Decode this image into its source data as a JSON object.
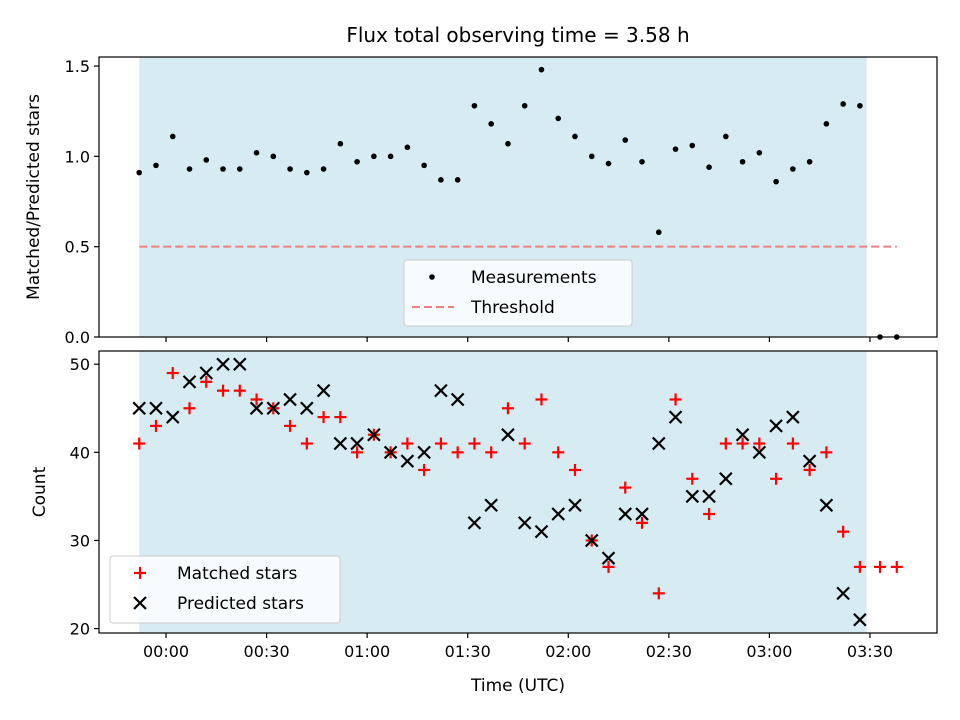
{
  "chart_data": [
    {
      "type": "scatter",
      "title": "Flux total observing time = 3.58 h",
      "xlabel": "",
      "ylabel": "Matched/Predicted stars",
      "ylim": [
        0,
        1.55
      ],
      "yticks": [
        0.0,
        0.5,
        1.0,
        1.5
      ],
      "ytick_labels": [
        "0.0",
        "0.5",
        "1.0",
        "1.5"
      ],
      "xlim_minutes": [
        -20,
        230
      ],
      "shaded_region_minutes": [
        -8,
        209
      ],
      "shade_color": "#add8e6",
      "legend_position": "lower-center",
      "threshold": {
        "name": "Threshold",
        "value": 0.5,
        "x_range_minutes": [
          -8,
          218
        ],
        "color": "#f08080"
      },
      "series": [
        {
          "name": "Measurements",
          "color": "#000000",
          "marker": "dot",
          "x_minutes": [
            -8,
            -3,
            2,
            7,
            12,
            17,
            22,
            27,
            32,
            37,
            42,
            47,
            52,
            57,
            62,
            67,
            72,
            77,
            82,
            87,
            92,
            97,
            102,
            107,
            112,
            117,
            122,
            127,
            132,
            137,
            142,
            147,
            152,
            157,
            162,
            167,
            172,
            177,
            182,
            187,
            192,
            197,
            202,
            207,
            213,
            218
          ],
          "y": [
            0.91,
            0.95,
            1.11,
            0.93,
            0.98,
            0.93,
            0.93,
            1.02,
            1.0,
            0.93,
            0.91,
            0.93,
            1.07,
            0.97,
            1.0,
            1.0,
            1.05,
            0.95,
            0.87,
            0.87,
            1.28,
            1.18,
            1.07,
            1.28,
            1.48,
            1.21,
            1.11,
            1.0,
            0.96,
            1.09,
            0.97,
            0.58,
            1.04,
            1.06,
            0.94,
            1.11,
            0.97,
            1.02,
            0.86,
            0.93,
            0.97,
            1.18,
            1.29,
            1.28,
            0.0,
            0.0
          ]
        }
      ]
    },
    {
      "type": "scatter",
      "title": "",
      "xlabel": "Time (UTC)",
      "ylabel": "Count",
      "ylim": [
        19.5,
        51.5
      ],
      "yticks": [
        20,
        30,
        40,
        50
      ],
      "ytick_labels": [
        "20",
        "30",
        "40",
        "50"
      ],
      "xlim_minutes": [
        -20,
        230
      ],
      "xticks_minutes": [
        0,
        30,
        60,
        90,
        120,
        150,
        180,
        210
      ],
      "xtick_labels": [
        "00:00",
        "00:30",
        "01:00",
        "01:30",
        "02:00",
        "02:30",
        "03:00",
        "03:30"
      ],
      "shaded_region_minutes": [
        -8,
        209
      ],
      "shade_color": "#add8e6",
      "legend_position": "lower-left",
      "series": [
        {
          "name": "Matched stars",
          "color": "#ff0000",
          "marker": "plus",
          "x_minutes": [
            -8,
            -3,
            2,
            7,
            12,
            17,
            22,
            27,
            32,
            37,
            42,
            47,
            52,
            57,
            62,
            67,
            72,
            77,
            82,
            87,
            92,
            97,
            102,
            107,
            112,
            117,
            122,
            127,
            132,
            137,
            142,
            147,
            152,
            157,
            162,
            167,
            172,
            177,
            182,
            187,
            192,
            197,
            202,
            207,
            213,
            218
          ],
          "y": [
            41,
            43,
            49,
            45,
            48,
            47,
            47,
            46,
            45,
            43,
            41,
            44,
            44,
            40,
            42,
            40,
            41,
            38,
            41,
            40,
            41,
            40,
            45,
            41,
            46,
            40,
            38,
            30,
            27,
            36,
            32,
            24,
            46,
            37,
            33,
            41,
            41,
            41,
            37,
            41,
            38,
            40,
            31,
            27,
            27,
            27
          ]
        },
        {
          "name": "Predicted stars",
          "color": "#000000",
          "marker": "x",
          "x_minutes": [
            -8,
            -3,
            2,
            7,
            12,
            17,
            22,
            27,
            32,
            37,
            42,
            47,
            52,
            57,
            62,
            67,
            72,
            77,
            82,
            87,
            92,
            97,
            102,
            107,
            112,
            117,
            122,
            127,
            132,
            137,
            142,
            147,
            152,
            157,
            162,
            167,
            172,
            177,
            182,
            187,
            192,
            197,
            202,
            207
          ],
          "y": [
            45,
            45,
            44,
            48,
            49,
            50,
            50,
            45,
            45,
            46,
            45,
            47,
            41,
            41,
            42,
            40,
            39,
            40,
            47,
            46,
            32,
            34,
            42,
            32,
            31,
            33,
            34,
            30,
            28,
            33,
            33,
            41,
            44,
            35,
            35,
            37,
            42,
            40,
            43,
            44,
            39,
            34,
            24,
            21
          ]
        }
      ]
    }
  ]
}
